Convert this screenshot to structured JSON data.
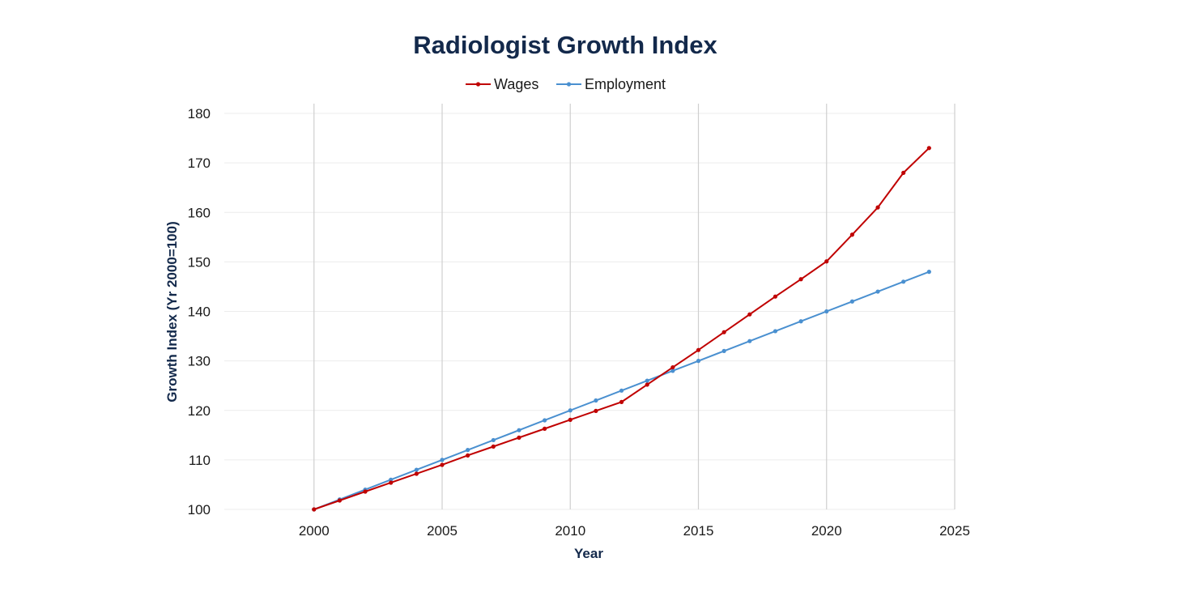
{
  "chart_data": {
    "type": "line",
    "title": "Radiologist Growth Index",
    "xlabel": "Year",
    "ylabel": "Growth Index (Yr 2000=100)",
    "xlim": [
      1996.5,
      2025
    ],
    "ylim": [
      100,
      180
    ],
    "x_ticks": [
      "2000",
      "2005",
      "2010",
      "2015",
      "2020",
      "2025"
    ],
    "y_ticks": [
      "100",
      "110",
      "120",
      "130",
      "140",
      "150",
      "160",
      "170",
      "180"
    ],
    "grid": {
      "horizontal": true,
      "vertical": true
    },
    "legend_position": "top",
    "x": [
      2000,
      2001,
      2002,
      2003,
      2004,
      2005,
      2006,
      2007,
      2008,
      2009,
      2010,
      2011,
      2012,
      2013,
      2014,
      2015,
      2016,
      2017,
      2018,
      2019,
      2020,
      2021,
      2022,
      2023,
      2024
    ],
    "series": [
      {
        "name": "Wages",
        "color": "#c00000",
        "values": [
          100,
          101.8,
          103.6,
          105.4,
          107.2,
          109,
          110.9,
          112.7,
          114.5,
          116.3,
          118.1,
          119.9,
          121.7,
          125.2,
          128.7,
          132.2,
          135.8,
          139.4,
          143,
          146.5,
          150.1,
          155.5,
          161,
          168,
          173
        ]
      },
      {
        "name": "Employment",
        "color": "#4a90d0",
        "values": [
          100,
          102,
          104,
          106,
          108,
          110,
          112,
          114,
          116,
          118,
          120,
          122,
          124,
          126,
          128,
          130,
          132,
          134,
          136,
          138,
          140,
          142,
          144,
          146,
          148
        ]
      }
    ]
  }
}
